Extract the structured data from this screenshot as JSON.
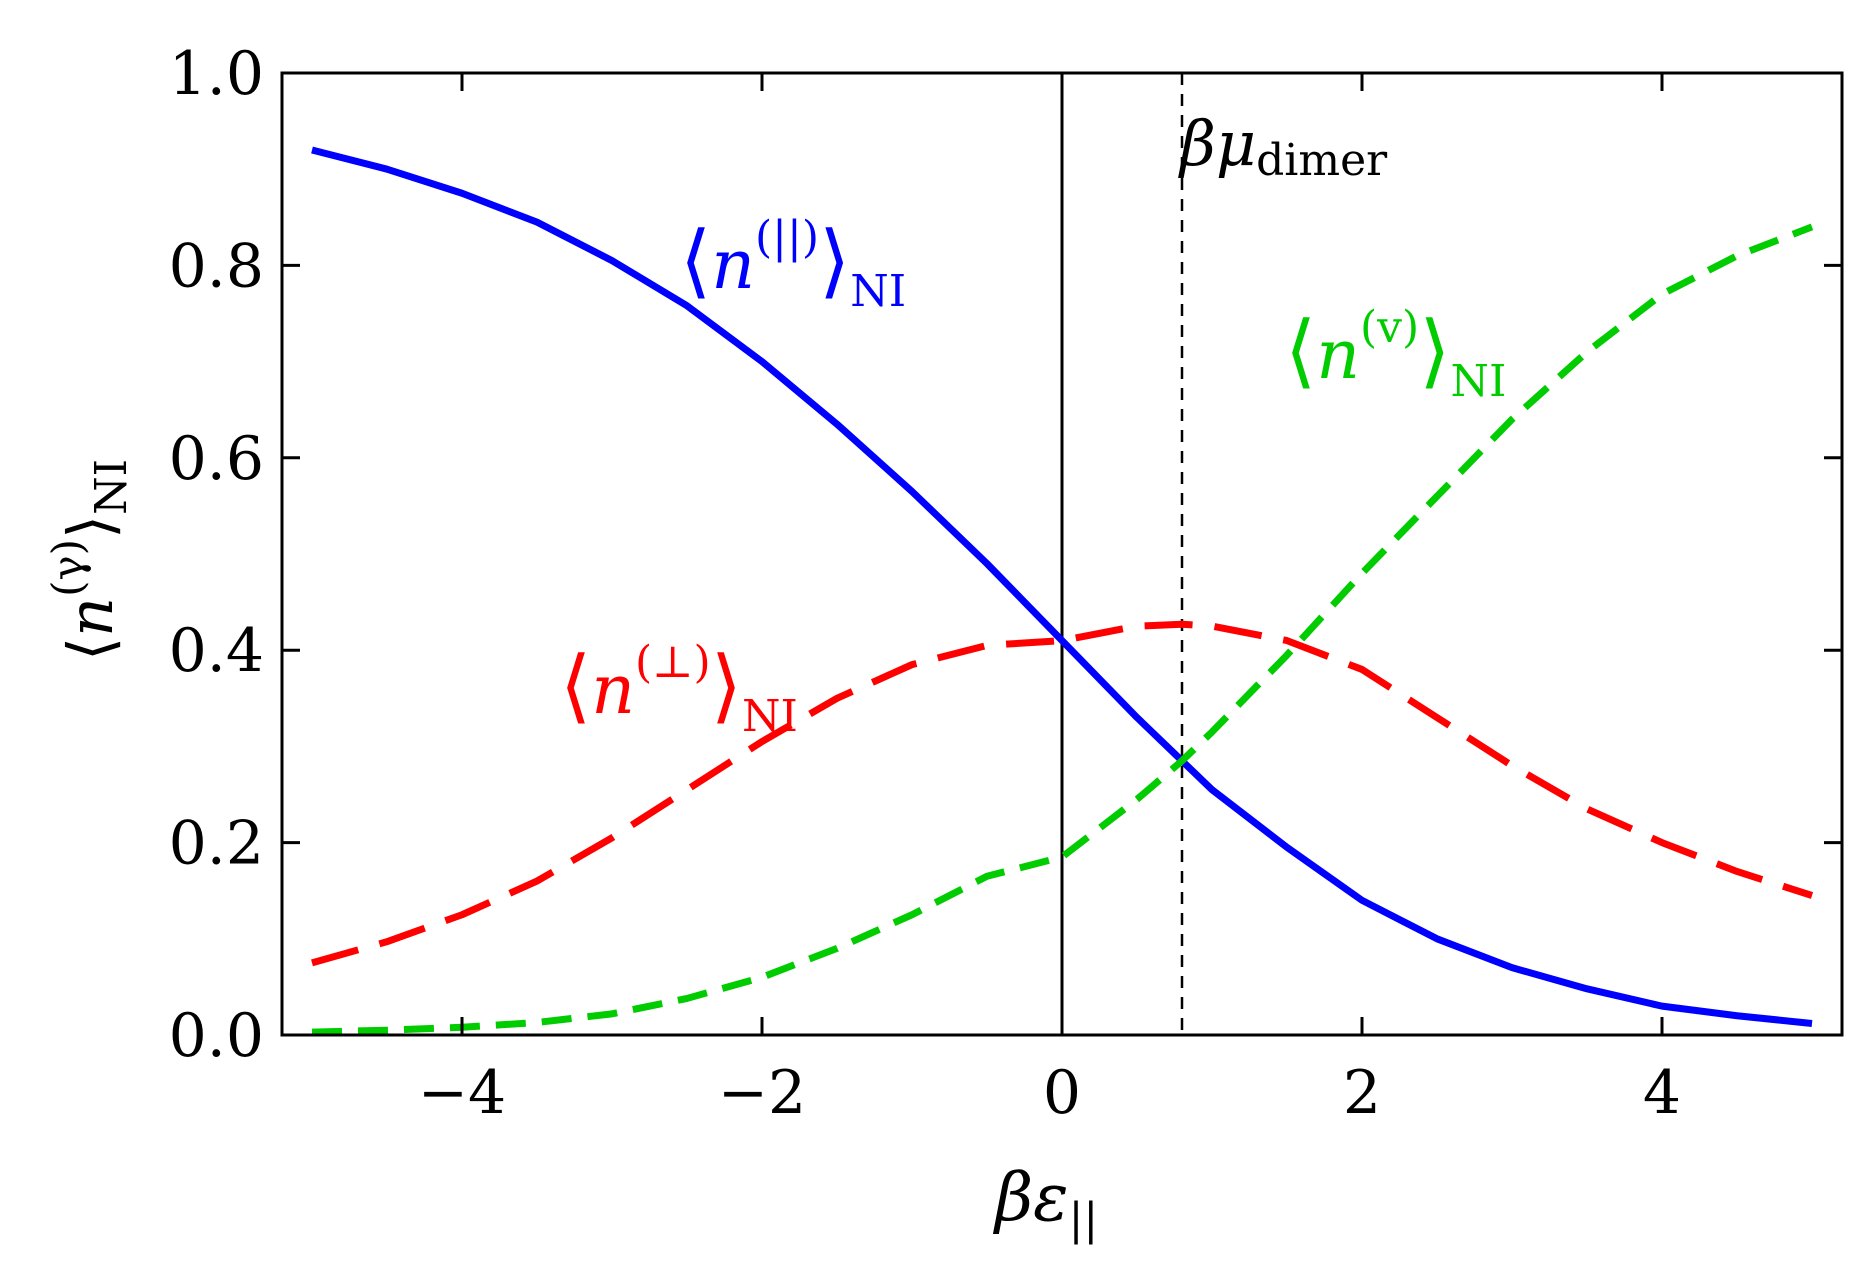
{
  "chart_data": {
    "type": "line",
    "xlabel": {
      "base": "βε",
      "sub": "||"
    },
    "ylabel": {
      "open": "⟨",
      "base": "n",
      "sup": "(γ)",
      "close": "⟩",
      "sub": "NI"
    },
    "xlim": [
      -5.2,
      5.2
    ],
    "ylim": [
      0.0,
      1.0
    ],
    "xticks": [
      -4,
      -2,
      0,
      2,
      4
    ],
    "xtick_labels": [
      "−4",
      "−2",
      "0",
      "2",
      "4"
    ],
    "yticks": [
      0.0,
      0.2,
      0.4,
      0.6,
      0.8,
      1.0
    ],
    "ytick_labels": [
      "0.0",
      "0.2",
      "0.4",
      "0.6",
      "0.8",
      "1.0"
    ],
    "grid": false,
    "vlines": [
      {
        "x": 0.0,
        "style": "solid",
        "color": "#000000"
      },
      {
        "x": 0.8,
        "style": "dashed",
        "color": "#000000",
        "label": {
          "base": "βμ",
          "sub": "dimer"
        }
      }
    ],
    "x": [
      -5.0,
      -4.5,
      -4.0,
      -3.5,
      -3.0,
      -2.5,
      -2.0,
      -1.5,
      -1.0,
      -0.5,
      0.0,
      0.5,
      0.8,
      1.0,
      1.5,
      2.0,
      2.5,
      3.0,
      3.5,
      4.0,
      4.5,
      5.0
    ],
    "series": [
      {
        "color": "#0000ff",
        "style": "solid",
        "label": {
          "base": "n",
          "sup": "(||)",
          "sub": "NI"
        },
        "values": [
          0.92,
          0.9,
          0.875,
          0.845,
          0.805,
          0.758,
          0.7,
          0.635,
          0.565,
          0.49,
          0.41,
          0.33,
          0.285,
          0.255,
          0.195,
          0.14,
          0.1,
          0.07,
          0.048,
          0.03,
          0.02,
          0.012
        ]
      },
      {
        "color": "#ff0000",
        "style": "long-dashed",
        "label": {
          "base": "n",
          "sup": "(⊥)",
          "sub": "NI"
        },
        "values": [
          0.075,
          0.097,
          0.125,
          0.16,
          0.205,
          0.255,
          0.305,
          0.35,
          0.385,
          0.405,
          0.41,
          0.425,
          0.427,
          0.425,
          0.41,
          0.38,
          0.33,
          0.28,
          0.235,
          0.2,
          0.17,
          0.145
        ]
      },
      {
        "color": "#00cc00",
        "style": "dashed",
        "label": {
          "base": "n",
          "sup": "(v)",
          "sub": "NI"
        },
        "values": [
          0.003,
          0.005,
          0.008,
          0.013,
          0.022,
          0.038,
          0.06,
          0.09,
          0.125,
          0.165,
          0.185,
          0.245,
          0.285,
          0.315,
          0.395,
          0.48,
          0.56,
          0.64,
          0.71,
          0.77,
          0.81,
          0.84
        ]
      }
    ]
  }
}
